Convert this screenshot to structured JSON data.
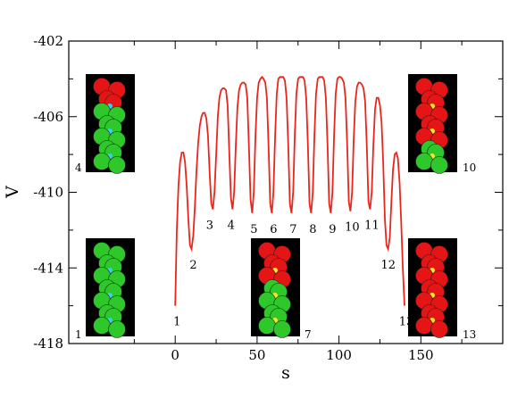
{
  "chart_data": {
    "type": "line",
    "xlabel": "s",
    "ylabel": "V",
    "xlim": [
      -65,
      200
    ],
    "ylim": [
      -418,
      -402
    ],
    "x_ticks": [
      "0",
      "50",
      "100",
      "150"
    ],
    "y_ticks": [
      "-402",
      "-406",
      "-410",
      "-414",
      "-418"
    ],
    "grid": false,
    "series": [
      {
        "color": "#e8261b",
        "x": [
          0,
          1,
          2,
          3,
          4,
          5,
          6,
          7,
          8,
          9,
          10,
          11,
          12,
          13,
          14,
          15,
          16,
          17,
          18,
          19,
          20,
          21,
          22,
          23,
          24,
          25,
          26,
          27,
          28,
          29,
          30,
          31,
          32,
          33,
          34,
          35,
          36,
          37,
          38,
          39,
          40,
          41,
          42,
          43,
          44,
          45,
          46,
          47,
          48,
          49,
          50,
          51,
          52,
          53,
          54,
          55,
          56,
          57,
          58,
          59,
          60,
          61,
          62,
          63,
          64,
          65,
          66,
          67,
          68,
          69,
          70,
          71,
          72,
          73,
          74,
          75,
          76,
          77,
          78,
          79,
          80,
          81,
          82,
          83,
          84,
          85,
          86,
          87,
          88,
          89,
          90,
          91,
          92,
          93,
          94,
          95,
          96,
          97,
          98,
          99,
          100,
          101,
          102,
          103,
          104,
          105,
          106,
          107,
          108,
          109,
          110,
          111,
          112,
          113,
          114,
          115,
          116,
          117,
          118,
          119,
          120,
          121,
          122,
          123,
          124,
          125,
          126,
          127,
          128,
          129,
          130,
          131,
          132,
          133,
          134,
          135,
          136,
          137,
          138,
          139,
          140
        ],
        "y": [
          -416.0,
          -412.0,
          -409.6,
          -408.4,
          -407.9,
          -407.9,
          -408.4,
          -409.6,
          -411.4,
          -412.8,
          -413.0,
          -412.3,
          -410.8,
          -408.9,
          -407.4,
          -406.5,
          -406.0,
          -405.8,
          -405.8,
          -406.1,
          -407.0,
          -408.9,
          -410.6,
          -410.9,
          -410.0,
          -408.0,
          -406.0,
          -405.0,
          -404.6,
          -404.5,
          -404.5,
          -404.6,
          -405.4,
          -407.8,
          -410.3,
          -410.9,
          -410.0,
          -407.5,
          -405.5,
          -404.6,
          -404.3,
          -404.2,
          -404.2,
          -404.3,
          -405.0,
          -407.5,
          -410.4,
          -411.1,
          -410.0,
          -407.0,
          -405.0,
          -404.2,
          -404.0,
          -403.9,
          -404.0,
          -404.2,
          -405.0,
          -407.5,
          -410.6,
          -411.1,
          -410.0,
          -407.0,
          -404.8,
          -404.0,
          -403.9,
          -403.9,
          -403.9,
          -404.1,
          -405.0,
          -407.5,
          -410.6,
          -411.1,
          -410.0,
          -407.0,
          -404.8,
          -404.0,
          -403.9,
          -403.9,
          -403.9,
          -404.1,
          -405.0,
          -407.5,
          -410.6,
          -411.1,
          -410.0,
          -407.0,
          -404.8,
          -404.0,
          -403.9,
          -403.9,
          -403.9,
          -404.1,
          -405.0,
          -407.5,
          -410.6,
          -411.1,
          -410.0,
          -407.0,
          -404.8,
          -404.0,
          -403.9,
          -403.9,
          -404.0,
          -404.2,
          -405.0,
          -407.5,
          -410.5,
          -411.0,
          -410.0,
          -407.2,
          -405.2,
          -404.4,
          -404.2,
          -404.2,
          -404.3,
          -404.5,
          -405.2,
          -407.6,
          -410.5,
          -410.9,
          -410.0,
          -407.5,
          -405.6,
          -405.0,
          -405.0,
          -405.4,
          -406.3,
          -408.4,
          -411.4,
          -412.8,
          -413.0,
          -412.4,
          -410.5,
          -408.8,
          -408.0,
          -407.9,
          -408.2,
          -409.5,
          -411.6,
          -414.0,
          -416.0
        ],
        "point_labels": [
          {
            "text": "1",
            "x": 0,
            "y": -416.0
          },
          {
            "text": "2",
            "x": 10,
            "y": -413.0
          },
          {
            "text": "3",
            "x": 20,
            "y": -410.9
          },
          {
            "text": "4",
            "x": 33,
            "y": -410.9
          },
          {
            "text": "5",
            "x": 47,
            "y": -411.1
          },
          {
            "text": "6",
            "x": 59,
            "y": -411.1
          },
          {
            "text": "7",
            "x": 71,
            "y": -411.1
          },
          {
            "text": "8",
            "x": 83,
            "y": -411.1
          },
          {
            "text": "9",
            "x": 95,
            "y": -411.1
          },
          {
            "text": "10",
            "x": 107,
            "y": -411.0
          },
          {
            "text": "11",
            "x": 119,
            "y": -410.9
          },
          {
            "text": "12",
            "x": 129,
            "y": -413.0
          },
          {
            "text": "13",
            "x": 140,
            "y": -416.0
          }
        ]
      }
    ],
    "insets": [
      {
        "label": "4",
        "colors": [
          "red",
          "green"
        ],
        "dots": "cyan"
      },
      {
        "label": "10",
        "colors": [
          "red",
          "green"
        ],
        "dots": "yellow"
      },
      {
        "label": "1",
        "colors": [
          "green"
        ],
        "dots": "cyan"
      },
      {
        "label": "7",
        "colors": [
          "red",
          "green"
        ],
        "dots": "yellow"
      },
      {
        "label": "13",
        "colors": [
          "red"
        ],
        "dots": "yellow"
      }
    ]
  }
}
